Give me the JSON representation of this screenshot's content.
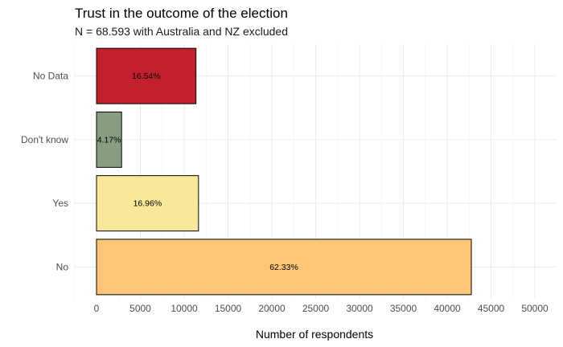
{
  "chart_data": {
    "type": "bar",
    "orientation": "horizontal",
    "title": "Trust in the outcome of the election",
    "subtitle": "N = 68.593 with Australia and NZ excluded",
    "xlabel": "Number of respondents",
    "ylabel": "",
    "xlim": [
      0,
      50000
    ],
    "x_ticks": [
      "0",
      "5000",
      "10000",
      "15000",
      "20000",
      "25000",
      "30000",
      "35000",
      "40000",
      "45000",
      "50000"
    ],
    "grid": true,
    "legend": "none",
    "categories": [
      "No",
      "Yes",
      "Don't know",
      "No Data"
    ],
    "values": [
      42753,
      11634,
      2860,
      11346
    ],
    "labels": [
      "62.33%",
      "16.96%",
      "4.17%",
      "16.54%"
    ],
    "colors": [
      "#FDC576",
      "#F9E897",
      "#889E81",
      "#C3202E"
    ]
  }
}
